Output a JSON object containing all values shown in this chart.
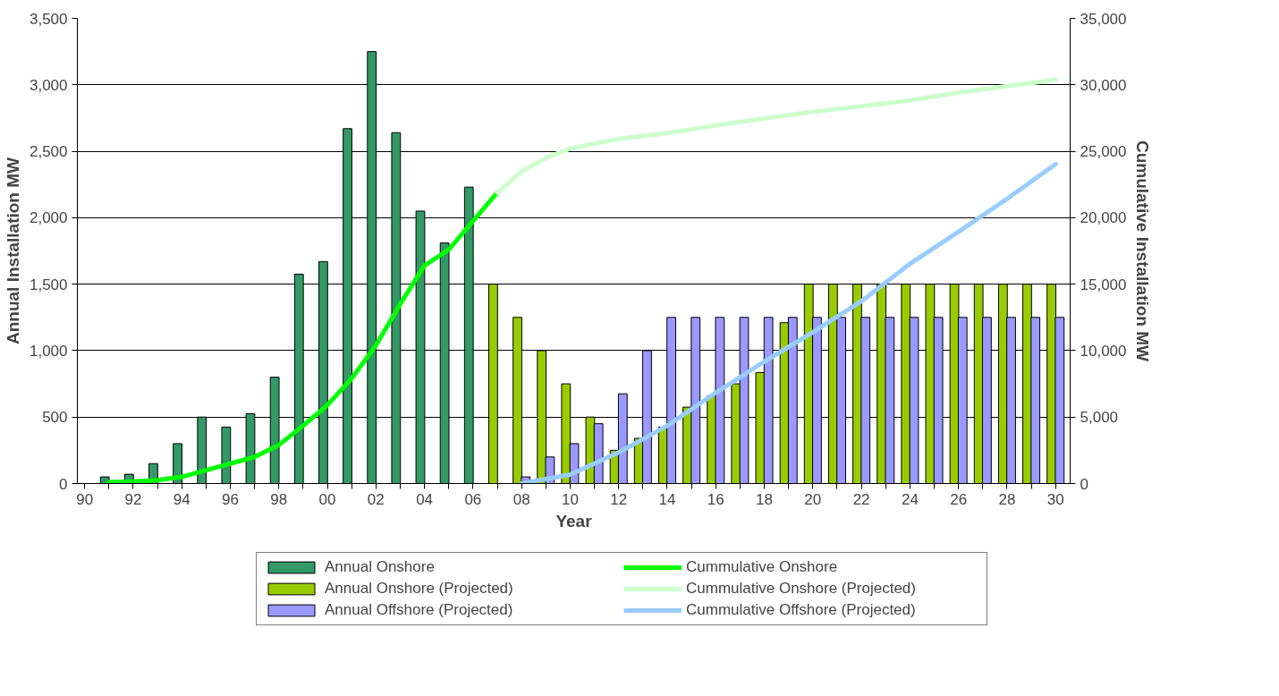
{
  "chart_data": {
    "type": "bar",
    "xlabel": "Year",
    "ylabel": "Annual Installation MW",
    "y2label": "Cumulative Installation MW",
    "xlim": [
      1989.7,
      2030.6
    ],
    "xticks": [
      {
        "value": 1990,
        "label": "90"
      },
      {
        "value": 1991,
        "label": null
      },
      {
        "value": 1992,
        "label": "92"
      },
      {
        "value": 1993,
        "label": null
      },
      {
        "value": 1994,
        "label": "94"
      },
      {
        "value": 1995,
        "label": null
      },
      {
        "value": 1996,
        "label": "96"
      },
      {
        "value": 1997,
        "label": null
      },
      {
        "value": 1998,
        "label": "98"
      },
      {
        "value": 1999,
        "label": null
      },
      {
        "value": 2000,
        "label": "00"
      },
      {
        "value": 2001,
        "label": null
      },
      {
        "value": 2002,
        "label": "02"
      },
      {
        "value": 2003,
        "label": null
      },
      {
        "value": 2004,
        "label": "04"
      },
      {
        "value": 2005,
        "label": null
      },
      {
        "value": 2006,
        "label": "06"
      },
      {
        "value": 2007,
        "label": null
      },
      {
        "value": 2008,
        "label": "08"
      },
      {
        "value": 2009,
        "label": null
      },
      {
        "value": 2010,
        "label": "10"
      },
      {
        "value": 2011,
        "label": null
      },
      {
        "value": 2012,
        "label": "12"
      },
      {
        "value": 2013,
        "label": null
      },
      {
        "value": 2014,
        "label": "14"
      },
      {
        "value": 2015,
        "label": null
      },
      {
        "value": 2016,
        "label": "16"
      },
      {
        "value": 2017,
        "label": null
      },
      {
        "value": 2018,
        "label": "18"
      },
      {
        "value": 2019,
        "label": null
      },
      {
        "value": 2020,
        "label": "20"
      },
      {
        "value": 2021,
        "label": null
      },
      {
        "value": 2022,
        "label": "22"
      },
      {
        "value": 2023,
        "label": null
      },
      {
        "value": 2024,
        "label": "24"
      },
      {
        "value": 2025,
        "label": null
      },
      {
        "value": 2026,
        "label": "26"
      },
      {
        "value": 2027,
        "label": null
      },
      {
        "value": 2028,
        "label": "28"
      },
      {
        "value": 2029,
        "label": null
      },
      {
        "value": 2030,
        "label": "30"
      }
    ],
    "ylim": [
      0,
      3500
    ],
    "yticks": [
      0,
      {
        "value": 500,
        "label": "500"
      },
      {
        "value": 1000,
        "label": "1,000"
      },
      {
        "value": 1500,
        "label": "1,500"
      },
      {
        "value": 2000,
        "label": "2,000"
      },
      {
        "value": 2500,
        "label": "2,500"
      },
      {
        "value": 3000,
        "label": "3,000"
      },
      {
        "value": 3500,
        "label": "3,500"
      }
    ],
    "y2lim": [
      0,
      35000
    ],
    "y2ticks": [
      0,
      {
        "value": 5000,
        "label": "5,000"
      },
      {
        "value": 10000,
        "label": "10,000"
      },
      {
        "value": 15000,
        "label": "15,000"
      },
      {
        "value": 20000,
        "label": "20,000"
      },
      {
        "value": 25000,
        "label": "25,000"
      },
      {
        "value": 30000,
        "label": "30,000"
      },
      {
        "value": 35000,
        "label": "35,000"
      }
    ],
    "grid": "y",
    "legend": "bottom",
    "series": [
      {
        "name": "Annual Onshore",
        "color": "#339966",
        "x": [
          1991,
          1992,
          1993,
          1994,
          1995,
          1996,
          1997,
          1998,
          1999,
          2000,
          2001,
          2002,
          2003,
          2004,
          2005,
          2006
        ],
        "values": [
          50,
          70,
          150,
          300,
          500,
          425,
          525,
          800,
          1575,
          1670,
          2670,
          3250,
          2640,
          2050,
          1810,
          2230
        ]
      },
      {
        "name": "Annual Onshore (Projected)",
        "color": "#99cc00",
        "x": [
          2007,
          2008,
          2009,
          2010,
          2011,
          2012,
          2013,
          2014,
          2015,
          2016,
          2017,
          2018,
          2019,
          2020,
          2021,
          2022,
          2023,
          2024,
          2025,
          2026,
          2027,
          2028,
          2029,
          2030
        ],
        "values": [
          1500,
          1250,
          1000,
          750,
          500,
          250,
          340,
          425,
          575,
          660,
          750,
          835,
          1210,
          1500,
          1500,
          1500,
          1500,
          1500,
          1500,
          1500,
          1500,
          1500,
          1500,
          1500
        ]
      },
      {
        "name": "Annual Offshore (Projected)",
        "color": "#9999ff",
        "x": [
          2008,
          2009,
          2010,
          2011,
          2012,
          2013,
          2014,
          2015,
          2016,
          2017,
          2018,
          2019,
          2020,
          2021,
          2022,
          2023,
          2024,
          2025,
          2026,
          2027,
          2028,
          2029,
          2030
        ],
        "values": [
          50,
          200,
          300,
          450,
          675,
          1000,
          1250,
          1250,
          1250,
          1250,
          1250,
          1250,
          1250,
          1250,
          1250,
          1250,
          1250,
          1250,
          1250,
          1250,
          1250,
          1250,
          1250
        ]
      },
      {
        "name": "Cummulative Onshore",
        "type": "line",
        "axis": "y2",
        "color": "#00ff00",
        "x": [
          1991,
          1992,
          1993,
          1994,
          1995,
          1996,
          1997,
          1998,
          1999,
          2000,
          2001,
          2002,
          2003,
          2004,
          2005,
          2006,
          2007
        ],
        "values": [
          100,
          150,
          250,
          500,
          1000,
          1500,
          2000,
          2900,
          4350,
          5900,
          7900,
          10400,
          13500,
          16400,
          17600,
          19750,
          21900
        ]
      },
      {
        "name": "Cummulative Onshore (Projected)",
        "type": "line",
        "axis": "y2",
        "color": "#ccffcc",
        "x": [
          2007,
          2008,
          2009,
          2010,
          2012,
          2014,
          2016,
          2018,
          2020,
          2022,
          2024,
          2026,
          2028,
          2030
        ],
        "values": [
          21900,
          23460,
          24500,
          25200,
          25930,
          26370,
          26940,
          27470,
          27960,
          28390,
          28830,
          29410,
          29900,
          30370
        ]
      },
      {
        "name": "Cummulative Offshore (Projected)",
        "type": "line",
        "axis": "y2",
        "color": "#99ccff",
        "x": [
          2008,
          2010,
          2012,
          2014,
          2016,
          2018,
          2020,
          2022,
          2024,
          2026,
          2028,
          2030
        ],
        "values": [
          0,
          670,
          2340,
          4350,
          6830,
          9170,
          11380,
          13720,
          16530,
          18940,
          21420,
          24030
        ]
      }
    ]
  }
}
